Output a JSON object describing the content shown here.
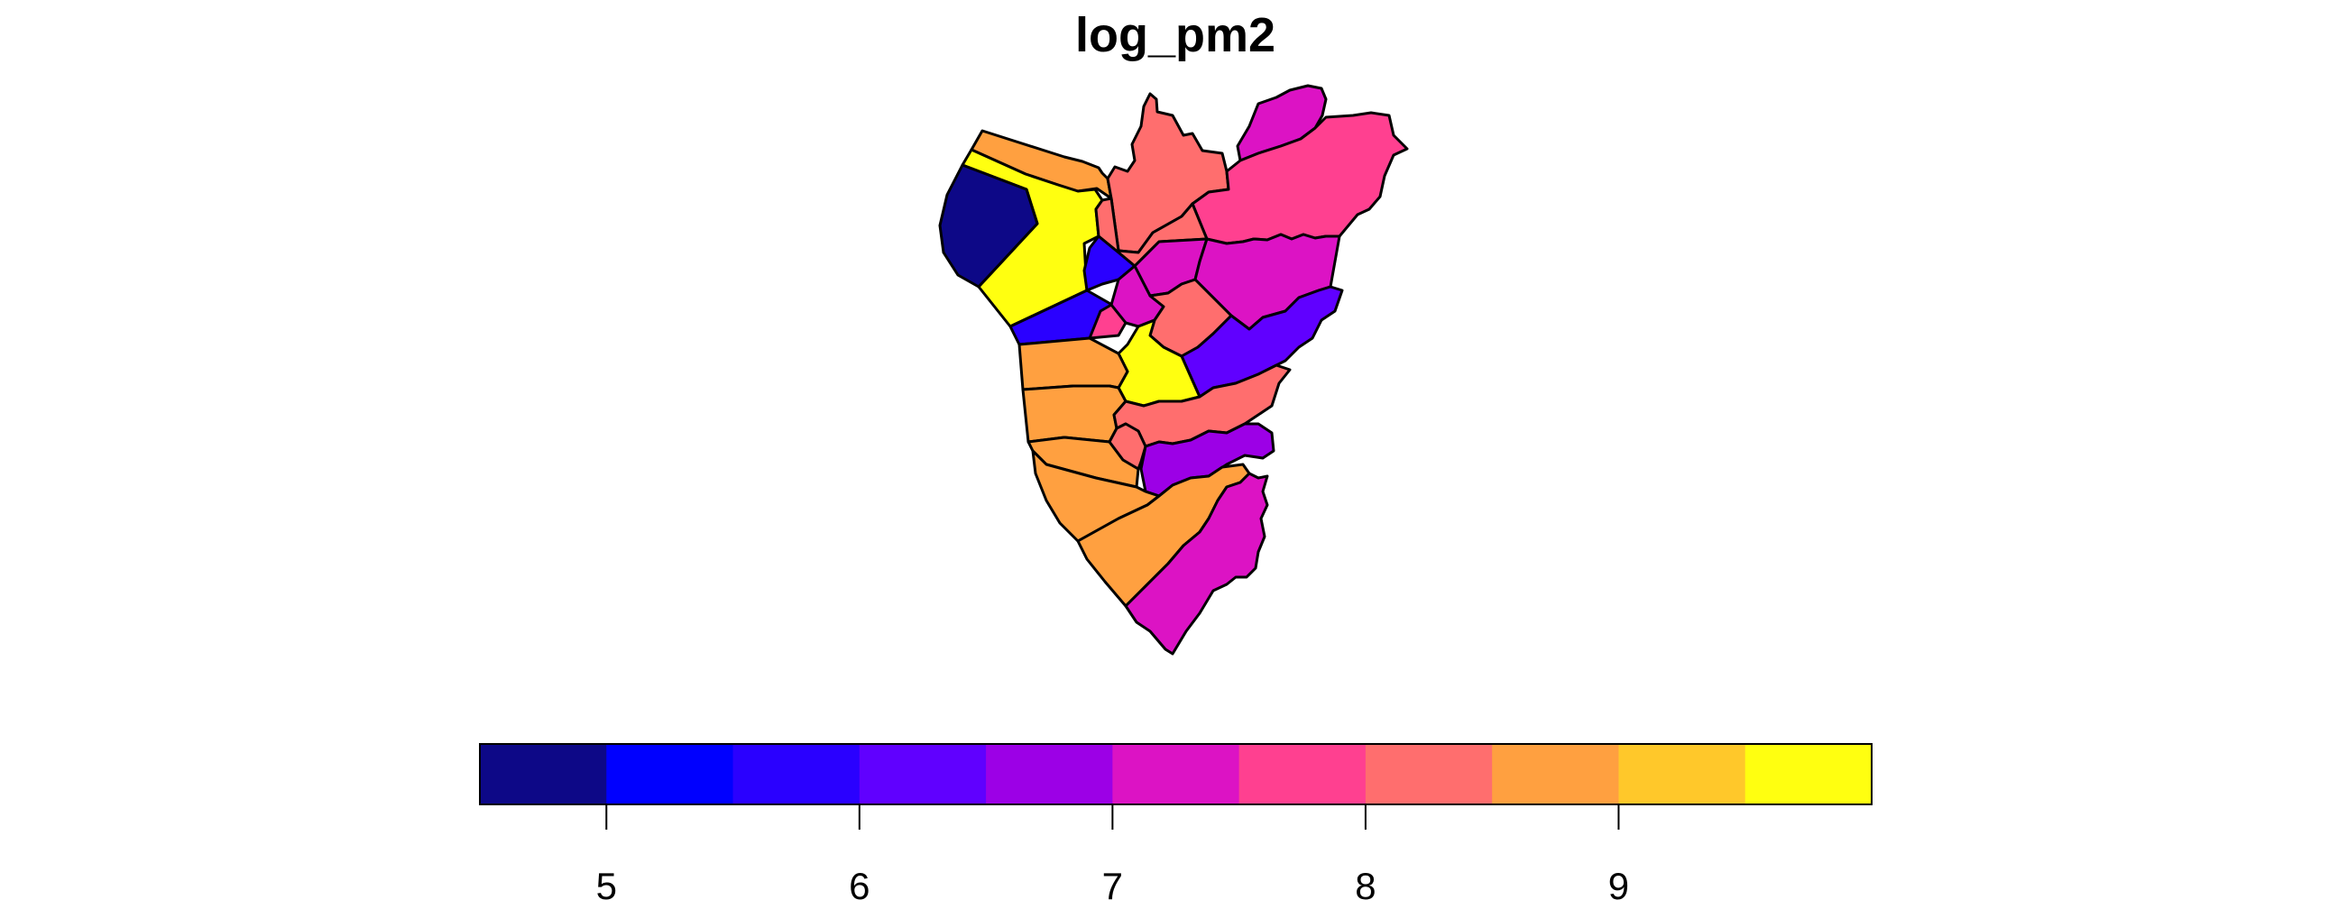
{
  "map": {
    "title": "log_pm2",
    "palette": [
      "#0D0887",
      "#0000FF",
      "#2A00FF",
      "#6000FF",
      "#9C00E6",
      "#DC13C4",
      "#FF4090",
      "#FF6E6E",
      "#FFA040",
      "#FFC82A",
      "#FFFF10"
    ],
    "legend": {
      "type": "continuous-binned",
      "bins": [
        {
          "range": [
            4.5,
            5.0
          ],
          "color": "#0D0887"
        },
        {
          "range": [
            5.0,
            5.5
          ],
          "color": "#0000FF"
        },
        {
          "range": [
            5.5,
            6.0
          ],
          "color": "#2A00FF"
        },
        {
          "range": [
            6.0,
            6.5
          ],
          "color": "#6000FF"
        },
        {
          "range": [
            6.5,
            7.0
          ],
          "color": "#9C00E6"
        },
        {
          "range": [
            7.0,
            7.5
          ],
          "color": "#DC13C4"
        },
        {
          "range": [
            7.5,
            8.0
          ],
          "color": "#FF4090"
        },
        {
          "range": [
            8.0,
            8.5
          ],
          "color": "#FF6E6E"
        },
        {
          "range": [
            8.5,
            9.0
          ],
          "color": "#FFA040"
        },
        {
          "range": [
            9.0,
            9.5
          ],
          "color": "#FFC82A"
        },
        {
          "range": [
            9.5,
            10.0
          ],
          "color": "#FFFF10"
        }
      ],
      "ticks": [
        "5",
        "6",
        "7",
        "8",
        "9"
      ]
    }
  }
}
